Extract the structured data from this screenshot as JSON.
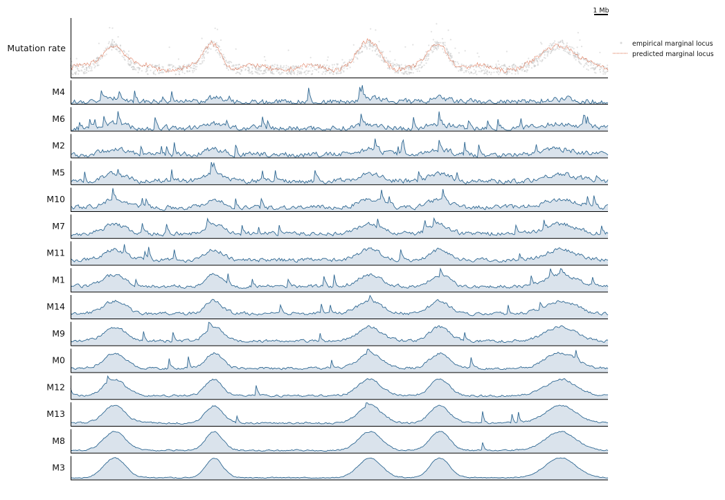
{
  "chart_data": {
    "type": "area",
    "top_panel": {
      "label": "Mutation rate",
      "series": [
        {
          "name": "empirical marginal locus",
          "style": "scatter",
          "color": "#c8c8c8"
        },
        {
          "name": "predicted marginal locus",
          "style": "dotted-line",
          "color": "#d9603b"
        }
      ]
    },
    "scale_bar": {
      "label": "1 Mb"
    },
    "legend": {
      "placement": "right"
    },
    "area_color": {
      "fill": "#dae3ec",
      "stroke": "#2c6691"
    },
    "tracks": [
      "M4",
      "M6",
      "M2",
      "M5",
      "M10",
      "M7",
      "M11",
      "M1",
      "M14",
      "M9",
      "M0",
      "M12",
      "M13",
      "M8",
      "M3"
    ],
    "highlight_regions": [
      {
        "center": 0.08,
        "width": 0.028
      },
      {
        "center": 0.265,
        "width": 0.022
      },
      {
        "center": 0.555,
        "width": 0.03
      },
      {
        "center": 0.685,
        "width": 0.025
      },
      {
        "center": 0.91,
        "width": 0.04
      }
    ]
  }
}
